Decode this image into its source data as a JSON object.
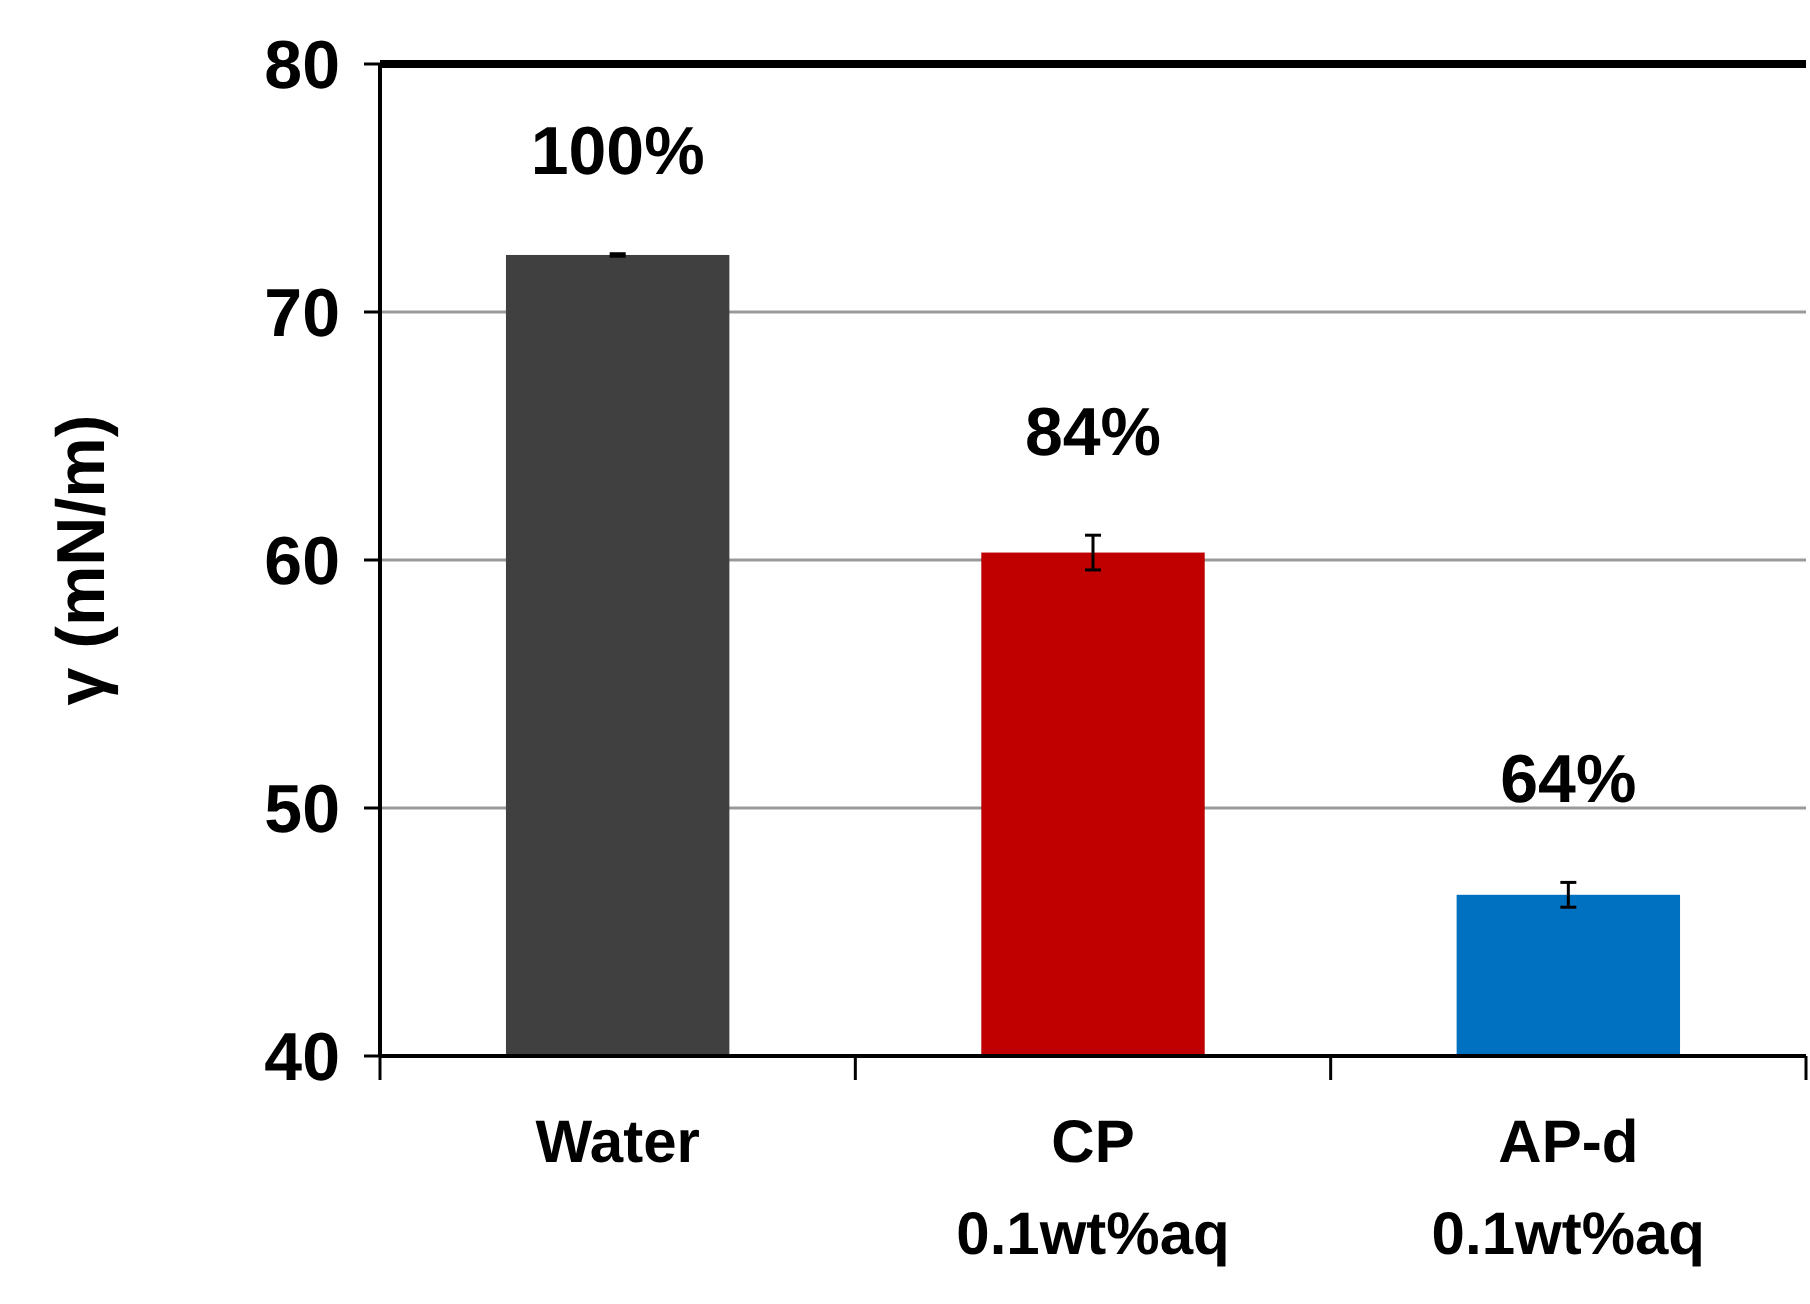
{
  "chart_data": {
    "type": "bar",
    "ylabel": "γ (mN/m)",
    "categories": [
      "Water",
      "CP\n0.1wt%aq",
      "AP-d\n0.1wt%aq"
    ],
    "values": [
      72.3,
      60.3,
      46.5
    ],
    "colors": [
      "#404040",
      "#c00000",
      "#0070c0"
    ],
    "errors": [
      0.05,
      0.7,
      0.5
    ],
    "annotations": [
      "100%",
      "84%",
      "64%"
    ],
    "ylim": [
      40,
      80
    ],
    "yticks": [
      40,
      50,
      60,
      70,
      80
    ],
    "grid": "y"
  }
}
